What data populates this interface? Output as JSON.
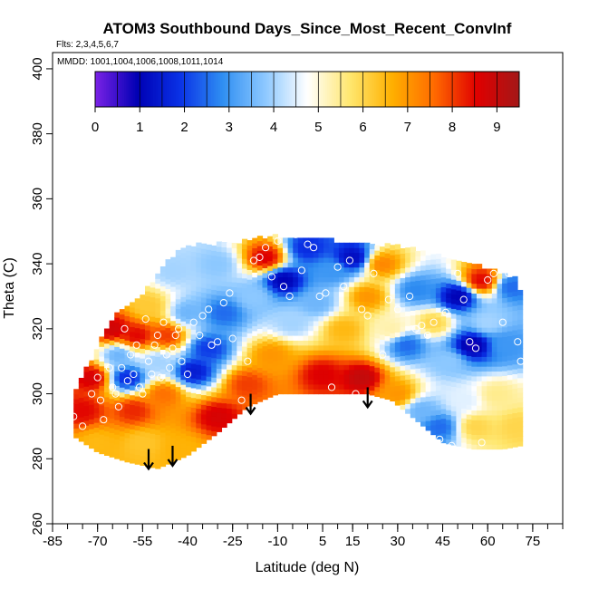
{
  "chart_data": {
    "type": "heatmap",
    "title": "ATOM3 Southbound Days_Since_Most_Recent_ConvInf",
    "flights_note": "Flts: 2,3,4,5,6,7",
    "dates_note": "MMDD: 1001,1004,1006,1008,1011,1014",
    "xlabel": "Latitude (deg N)",
    "ylabel": "Theta (C)",
    "xlim": [
      -85,
      85
    ],
    "ylim": [
      260,
      405
    ],
    "x_tick_labels": [
      "-85",
      "-70",
      "-55",
      "-40",
      "-25",
      "-10",
      "5",
      "15",
      "30",
      "45",
      "60",
      "75"
    ],
    "x_tick_values": [
      -85,
      -70,
      -55,
      -40,
      -25,
      -10,
      5,
      15,
      30,
      45,
      60,
      75
    ],
    "y_tick_labels": [
      "260",
      "280",
      "300",
      "320",
      "340",
      "360",
      "380",
      "400"
    ],
    "y_tick_values": [
      260,
      280,
      300,
      320,
      340,
      360,
      380,
      400
    ],
    "colorbar": {
      "min": 0,
      "max": 9.5,
      "tick_labels": [
        "0",
        "1",
        "2",
        "3",
        "4",
        "5",
        "6",
        "7",
        "8",
        "9"
      ],
      "tick_values": [
        0,
        1,
        2,
        3,
        4,
        5,
        6,
        7,
        8,
        9
      ],
      "colors": [
        "#7b22e6",
        "#0000b4",
        "#0a32e6",
        "#2f8ef2",
        "#8cc8ff",
        "#ffffff",
        "#ffe770",
        "#ffb000",
        "#ff6a00",
        "#e00000",
        "#a31818"
      ]
    },
    "arrows": [
      {
        "lat": -53,
        "theta": 283
      },
      {
        "lat": -45,
        "theta": 284
      },
      {
        "lat": -19,
        "theta": 300
      },
      {
        "lat": 20,
        "theta": 302
      }
    ],
    "field_lower_boundary": [
      [
        -78,
        287
      ],
      [
        -70,
        282
      ],
      [
        -60,
        279
      ],
      [
        -50,
        277
      ],
      [
        -40,
        281
      ],
      [
        -30,
        288
      ],
      [
        -20,
        296
      ],
      [
        -10,
        300
      ],
      [
        0,
        300
      ],
      [
        10,
        300
      ],
      [
        20,
        300
      ],
      [
        28,
        298
      ],
      [
        36,
        292
      ],
      [
        45,
        285
      ],
      [
        55,
        283
      ],
      [
        65,
        283
      ],
      [
        71,
        284
      ]
    ],
    "field_upper_boundary": [
      [
        -78,
        300
      ],
      [
        -72,
        310
      ],
      [
        -65,
        323
      ],
      [
        -55,
        330
      ],
      [
        -47,
        340
      ],
      [
        -40,
        345
      ],
      [
        -25,
        346
      ],
      [
        -10,
        348
      ],
      [
        5,
        347
      ],
      [
        20,
        345
      ],
      [
        30,
        345
      ],
      [
        40,
        343
      ],
      [
        50,
        340
      ],
      [
        60,
        338
      ],
      [
        70,
        335
      ],
      [
        71,
        330
      ]
    ],
    "field_samples": [
      {
        "lat": -75,
        "theta": 295,
        "value": 8.5
      },
      {
        "lat": -72,
        "theta": 305,
        "value": 8.7
      },
      {
        "lat": -70,
        "theta": 285,
        "value": 6.5
      },
      {
        "lat": -65,
        "theta": 320,
        "value": 8.8
      },
      {
        "lat": -63,
        "theta": 312,
        "value": 3.5
      },
      {
        "lat": -60,
        "theta": 305,
        "value": 1.8
      },
      {
        "lat": -58,
        "theta": 295,
        "value": 8.2
      },
      {
        "lat": -57,
        "theta": 318,
        "value": 8.5
      },
      {
        "lat": -55,
        "theta": 285,
        "value": 6.3
      },
      {
        "lat": -53,
        "theta": 327,
        "value": 6.2
      },
      {
        "lat": -50,
        "theta": 310,
        "value": 4.0
      },
      {
        "lat": -48,
        "theta": 300,
        "value": 7.5
      },
      {
        "lat": -47,
        "theta": 318,
        "value": 8.0
      },
      {
        "lat": -45,
        "theta": 338,
        "value": 4.0
      },
      {
        "lat": -42,
        "theta": 283,
        "value": 6.6
      },
      {
        "lat": -40,
        "theta": 325,
        "value": 3.5
      },
      {
        "lat": -38,
        "theta": 307,
        "value": 1.5
      },
      {
        "lat": -33,
        "theta": 314,
        "value": 2.0
      },
      {
        "lat": -30,
        "theta": 293,
        "value": 8.7
      },
      {
        "lat": -30,
        "theta": 340,
        "value": 3.8
      },
      {
        "lat": -28,
        "theta": 325,
        "value": 2.5
      },
      {
        "lat": -20,
        "theta": 303,
        "value": 8.0
      },
      {
        "lat": -18,
        "theta": 330,
        "value": 3.8
      },
      {
        "lat": -14,
        "theta": 342,
        "value": 8.6
      },
      {
        "lat": -12,
        "theta": 312,
        "value": 7.0
      },
      {
        "lat": -8,
        "theta": 335,
        "value": 1.0
      },
      {
        "lat": -5,
        "theta": 322,
        "value": 4.0
      },
      {
        "lat": 0,
        "theta": 345,
        "value": 1.8
      },
      {
        "lat": 3,
        "theta": 328,
        "value": 3.5
      },
      {
        "lat": 5,
        "theta": 306,
        "value": 8.6
      },
      {
        "lat": 8,
        "theta": 338,
        "value": 3.0
      },
      {
        "lat": 12,
        "theta": 320,
        "value": 6.5
      },
      {
        "lat": 15,
        "theta": 342,
        "value": 1.2
      },
      {
        "lat": 18,
        "theta": 305,
        "value": 9.0
      },
      {
        "lat": 20,
        "theta": 330,
        "value": 7.0
      },
      {
        "lat": 25,
        "theta": 340,
        "value": 7.2
      },
      {
        "lat": 28,
        "theta": 320,
        "value": 5.3
      },
      {
        "lat": 30,
        "theta": 300,
        "value": 7.0
      },
      {
        "lat": 33,
        "theta": 315,
        "value": 2.5
      },
      {
        "lat": 36,
        "theta": 332,
        "value": 2.8
      },
      {
        "lat": 38,
        "theta": 295,
        "value": 3.5
      },
      {
        "lat": 42,
        "theta": 322,
        "value": 6.0
      },
      {
        "lat": 44,
        "theta": 290,
        "value": 2.5
      },
      {
        "lat": 47,
        "theta": 310,
        "value": 3.8
      },
      {
        "lat": 50,
        "theta": 330,
        "value": 1.0
      },
      {
        "lat": 52,
        "theta": 298,
        "value": 4.5
      },
      {
        "lat": 55,
        "theta": 315,
        "value": 0.8
      },
      {
        "lat": 56,
        "theta": 290,
        "value": 6.0
      },
      {
        "lat": 58,
        "theta": 335,
        "value": 8.5
      },
      {
        "lat": 60,
        "theta": 322,
        "value": 4.0
      },
      {
        "lat": 63,
        "theta": 300,
        "value": 5.5
      },
      {
        "lat": 66,
        "theta": 315,
        "value": 3.0
      },
      {
        "lat": 68,
        "theta": 333,
        "value": 2.5
      },
      {
        "lat": 70,
        "theta": 290,
        "value": 6.0
      }
    ],
    "observations": [
      [
        -78,
        293
      ],
      [
        -75,
        290
      ],
      [
        -74,
        310
      ],
      [
        -72,
        300
      ],
      [
        -70,
        305
      ],
      [
        -69,
        298
      ],
      [
        -68,
        292
      ],
      [
        -66,
        308
      ],
      [
        -65,
        302
      ],
      [
        -64,
        300
      ],
      [
        -63,
        296
      ],
      [
        -62,
        308
      ],
      [
        -61,
        320
      ],
      [
        -60,
        304
      ],
      [
        -59,
        312
      ],
      [
        -58,
        306
      ],
      [
        -57,
        315
      ],
      [
        -56,
        302
      ],
      [
        -55,
        300
      ],
      [
        -54,
        323
      ],
      [
        -53,
        310
      ],
      [
        -52,
        306
      ],
      [
        -51,
        315
      ],
      [
        -50,
        318
      ],
      [
        -49,
        305
      ],
      [
        -48,
        322
      ],
      [
        -47,
        312
      ],
      [
        -46,
        308
      ],
      [
        -45,
        314
      ],
      [
        -44,
        318
      ],
      [
        -43,
        320
      ],
      [
        -42,
        310
      ],
      [
        -40,
        306
      ],
      [
        -38,
        322
      ],
      [
        -36,
        318
      ],
      [
        -35,
        324
      ],
      [
        -33,
        326
      ],
      [
        -32,
        315
      ],
      [
        -30,
        316
      ],
      [
        -28,
        328
      ],
      [
        -26,
        331
      ],
      [
        -25,
        317
      ],
      [
        -22,
        298
      ],
      [
        -20,
        310
      ],
      [
        -18,
        341
      ],
      [
        -16,
        342
      ],
      [
        -14,
        345
      ],
      [
        -12,
        336
      ],
      [
        -10,
        347
      ],
      [
        -8,
        333
      ],
      [
        -6,
        330
      ],
      [
        -4,
        349
      ],
      [
        -2,
        338
      ],
      [
        0,
        346
      ],
      [
        2,
        345
      ],
      [
        4,
        330
      ],
      [
        6,
        331
      ],
      [
        8,
        302
      ],
      [
        10,
        339
      ],
      [
        12,
        333
      ],
      [
        14,
        341
      ],
      [
        16,
        300
      ],
      [
        18,
        326
      ],
      [
        20,
        324
      ],
      [
        22,
        337
      ],
      [
        25,
        312
      ],
      [
        27,
        329
      ],
      [
        30,
        326
      ],
      [
        32,
        292
      ],
      [
        34,
        330
      ],
      [
        36,
        320
      ],
      [
        38,
        321
      ],
      [
        40,
        318
      ],
      [
        42,
        322
      ],
      [
        44,
        286
      ],
      [
        46,
        325
      ],
      [
        48,
        284
      ],
      [
        50,
        337
      ],
      [
        52,
        329
      ],
      [
        54,
        316
      ],
      [
        56,
        314
      ],
      [
        58,
        285
      ],
      [
        60,
        335
      ],
      [
        62,
        337
      ],
      [
        65,
        322
      ],
      [
        67,
        337
      ],
      [
        70,
        316
      ],
      [
        71,
        310
      ]
    ]
  }
}
